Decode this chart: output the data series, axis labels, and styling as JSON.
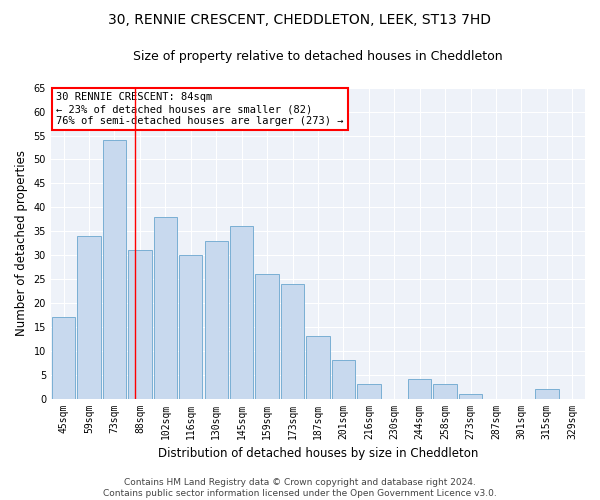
{
  "title_line1": "30, RENNIE CRESCENT, CHEDDLETON, LEEK, ST13 7HD",
  "title_line2": "Size of property relative to detached houses in Cheddleton",
  "xlabel": "Distribution of detached houses by size in Cheddleton",
  "ylabel": "Number of detached properties",
  "categories": [
    "45sqm",
    "59sqm",
    "73sqm",
    "88sqm",
    "102sqm",
    "116sqm",
    "130sqm",
    "145sqm",
    "159sqm",
    "173sqm",
    "187sqm",
    "201sqm",
    "216sqm",
    "230sqm",
    "244sqm",
    "258sqm",
    "273sqm",
    "287sqm",
    "301sqm",
    "315sqm",
    "329sqm"
  ],
  "values": [
    17,
    34,
    54,
    31,
    38,
    30,
    33,
    36,
    26,
    24,
    13,
    8,
    3,
    0,
    4,
    3,
    1,
    0,
    0,
    2,
    0
  ],
  "bar_color": "#c8d9ee",
  "bar_edge_color": "#7aafd4",
  "red_line_x": 2.82,
  "annotation_text": "30 RENNIE CRESCENT: 84sqm\n← 23% of detached houses are smaller (82)\n76% of semi-detached houses are larger (273) →",
  "annotation_box_color": "white",
  "annotation_box_edge": "red",
  "ylim": [
    0,
    65
  ],
  "yticks": [
    0,
    5,
    10,
    15,
    20,
    25,
    30,
    35,
    40,
    45,
    50,
    55,
    60,
    65
  ],
  "footer_line1": "Contains HM Land Registry data © Crown copyright and database right 2024.",
  "footer_line2": "Contains public sector information licensed under the Open Government Licence v3.0.",
  "background_color": "#ffffff",
  "plot_bg_color": "#eef2f9",
  "title_fontsize": 10,
  "subtitle_fontsize": 9,
  "axis_label_fontsize": 8.5,
  "tick_fontsize": 7,
  "footer_fontsize": 6.5,
  "annotation_fontsize": 7.5
}
